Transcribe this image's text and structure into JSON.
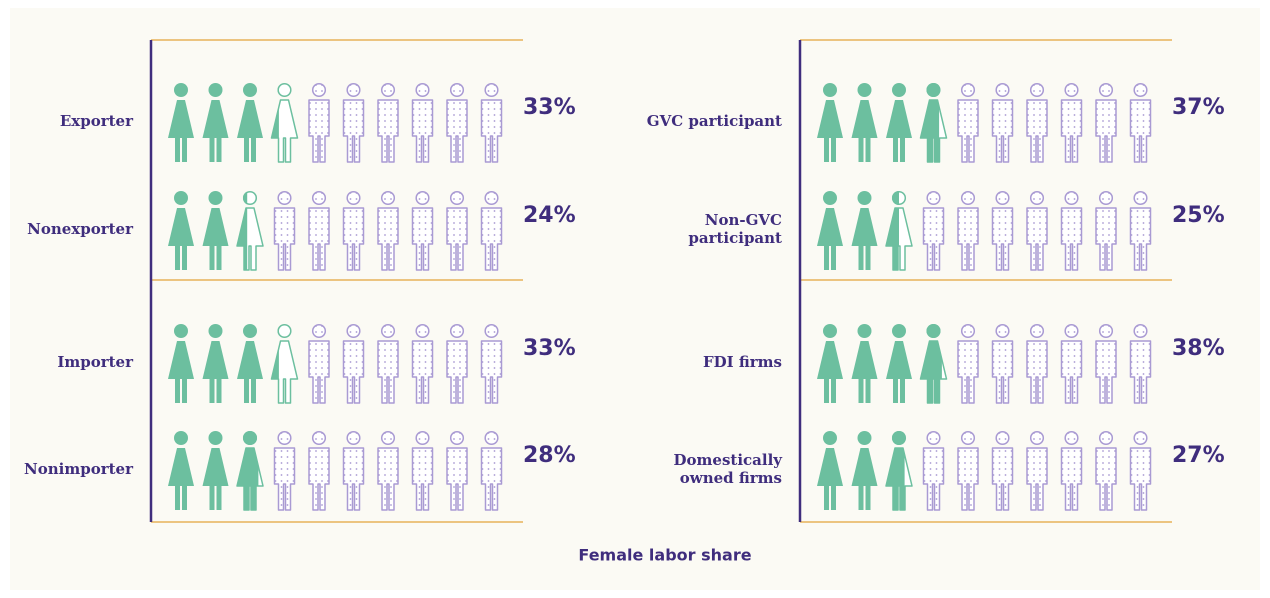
{
  "chart_data": {
    "type": "pictograph",
    "x_label": "Female labor share",
    "female_color": "#6cbf9f",
    "male_color": "#a99ad3",
    "panels": [
      {
        "categories": [
          [
            "Exporter"
          ],
          [
            "Nonexporter"
          ],
          [
            "Importer"
          ],
          [
            "Nonimporter"
          ]
        ],
        "values": [
          33,
          24,
          33,
          28
        ],
        "value_labels": [
          "33%",
          "24%",
          "33%",
          "28%"
        ]
      },
      {
        "categories": [
          [
            "GVC participant"
          ],
          [
            "Non-GVC",
            "participant"
          ],
          [
            "FDI firms"
          ],
          [
            "Domestically",
            "owned firms"
          ]
        ],
        "values": [
          37,
          25,
          38,
          27
        ],
        "value_labels": [
          "37%",
          "25%",
          "38%",
          "27%"
        ]
      }
    ]
  }
}
